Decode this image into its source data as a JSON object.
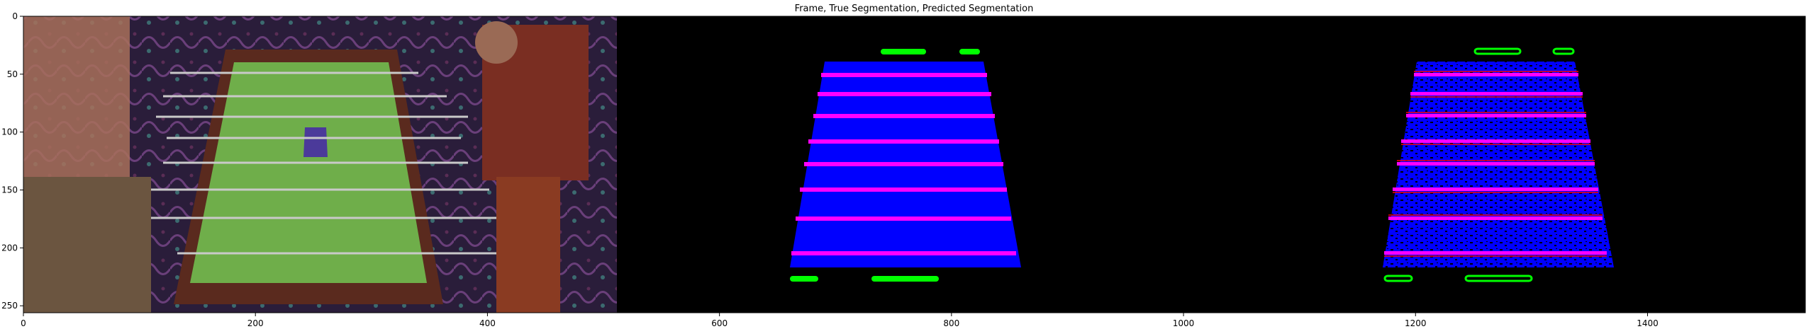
{
  "chart_data": {
    "type": "image",
    "title": "Frame, True Segmentation, Predicted Segmentation",
    "xlim": [
      0,
      1536
    ],
    "ylim": [
      256,
      0
    ],
    "xticks": [
      0,
      200,
      400,
      600,
      800,
      1000,
      1200,
      1400
    ],
    "yticks": [
      0,
      50,
      100,
      150,
      200,
      250
    ],
    "panels": [
      "frame",
      "true_segmentation",
      "predicted_segmentation"
    ],
    "colors": {
      "background": "#000000",
      "table": "#0000ff",
      "rods": "#ff00ff",
      "goals": "#00ff00",
      "misclassified": "#ff0000"
    }
  }
}
